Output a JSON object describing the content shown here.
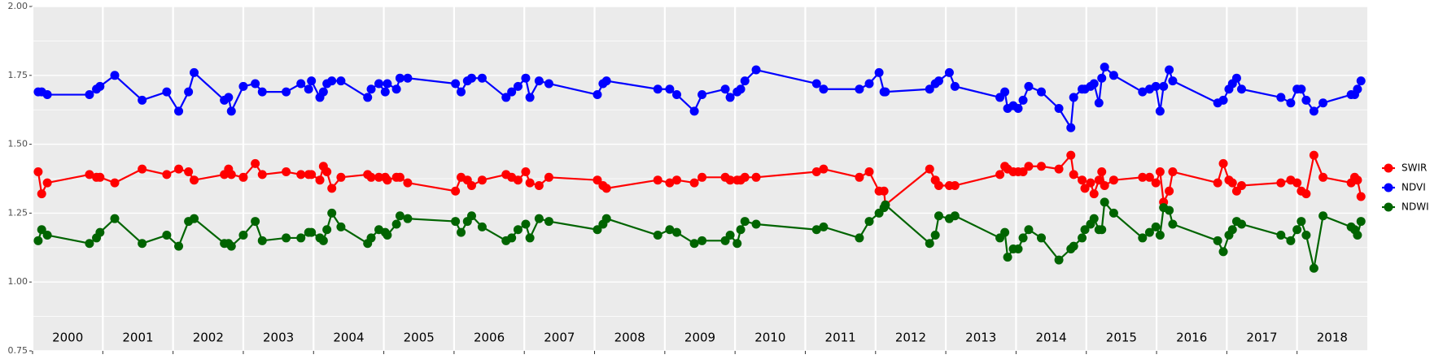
{
  "chart_data": {
    "type": "line",
    "x": [
      2000.08,
      2000.13,
      2000.21,
      2000.81,
      2000.91,
      2000.96,
      2001.17,
      2001.56,
      2001.91,
      2002.08,
      2002.22,
      2002.3,
      2002.73,
      2002.79,
      2002.83,
      2003.0,
      2003.17,
      2003.27,
      2003.61,
      2003.82,
      2003.93,
      2003.97,
      2004.09,
      2004.14,
      2004.19,
      2004.26,
      2004.39,
      2004.77,
      2004.82,
      2004.93,
      2005.02,
      2005.05,
      2005.18,
      2005.23,
      2005.34,
      2006.02,
      2006.1,
      2006.19,
      2006.25,
      2006.4,
      2006.74,
      2006.82,
      2006.91,
      2007.02,
      2007.08,
      2007.21,
      2007.35,
      2008.04,
      2008.12,
      2008.17,
      2008.9,
      2009.07,
      2009.17,
      2009.42,
      2009.53,
      2009.86,
      2009.93,
      2010.03,
      2010.08,
      2010.14,
      2010.3,
      2011.16,
      2011.26,
      2011.77,
      2011.91,
      2012.05,
      2012.12,
      2012.14,
      2012.77,
      2012.85,
      2012.9,
      2013.05,
      2013.13,
      2013.77,
      2013.84,
      2013.88,
      2013.96,
      2014.03,
      2014.1,
      2014.18,
      2014.36,
      2014.61,
      2014.78,
      2014.82,
      2014.94,
      2014.98,
      2015.06,
      2015.11,
      2015.18,
      2015.22,
      2015.26,
      2015.39,
      2015.8,
      2015.9,
      2015.99,
      2016.05,
      2016.1,
      2016.18,
      2016.23,
      2016.87,
      2016.95,
      2017.03,
      2017.08,
      2017.14,
      2017.21,
      2017.77,
      2017.91,
      2018.0,
      2018.06,
      2018.13,
      2018.24,
      2018.37,
      2018.77,
      2018.82,
      2018.86,
      2018.91
    ],
    "series": [
      {
        "name": "SWIR",
        "color": "#ff0000",
        "values": [
          1.4,
          1.32,
          1.36,
          1.39,
          1.38,
          1.38,
          1.36,
          1.41,
          1.39,
          1.41,
          1.4,
          1.37,
          1.39,
          1.41,
          1.39,
          1.38,
          1.43,
          1.39,
          1.4,
          1.39,
          1.39,
          1.39,
          1.37,
          1.42,
          1.4,
          1.34,
          1.38,
          1.39,
          1.38,
          1.38,
          1.38,
          1.37,
          1.38,
          1.38,
          1.36,
          1.33,
          1.38,
          1.37,
          1.35,
          1.37,
          1.39,
          1.38,
          1.37,
          1.4,
          1.36,
          1.35,
          1.38,
          1.37,
          1.35,
          1.34,
          1.37,
          1.36,
          1.37,
          1.36,
          1.38,
          1.38,
          1.37,
          1.37,
          1.37,
          1.38,
          1.38,
          1.4,
          1.41,
          1.38,
          1.4,
          1.33,
          1.33,
          1.28,
          1.41,
          1.37,
          1.35,
          1.35,
          1.35,
          1.39,
          1.42,
          1.41,
          1.4,
          1.4,
          1.4,
          1.42,
          1.42,
          1.41,
          1.46,
          1.39,
          1.37,
          1.34,
          1.36,
          1.32,
          1.37,
          1.4,
          1.35,
          1.37,
          1.38,
          1.38,
          1.36,
          1.4,
          1.29,
          1.33,
          1.4,
          1.36,
          1.43,
          1.37,
          1.36,
          1.33,
          1.35,
          1.36,
          1.37,
          1.36,
          1.33,
          1.32,
          1.46,
          1.38,
          1.36,
          1.38,
          1.37,
          1.31
        ]
      },
      {
        "name": "NDVI",
        "color": "#0000ff",
        "values": [
          1.69,
          1.69,
          1.68,
          1.68,
          1.7,
          1.71,
          1.75,
          1.66,
          1.69,
          1.62,
          1.69,
          1.76,
          1.66,
          1.67,
          1.62,
          1.71,
          1.72,
          1.69,
          1.69,
          1.72,
          1.7,
          1.73,
          1.67,
          1.69,
          1.72,
          1.73,
          1.73,
          1.67,
          1.7,
          1.72,
          1.69,
          1.72,
          1.7,
          1.74,
          1.74,
          1.72,
          1.69,
          1.73,
          1.74,
          1.74,
          1.67,
          1.69,
          1.71,
          1.74,
          1.67,
          1.73,
          1.72,
          1.68,
          1.72,
          1.73,
          1.7,
          1.7,
          1.68,
          1.62,
          1.68,
          1.7,
          1.67,
          1.69,
          1.7,
          1.73,
          1.77,
          1.72,
          1.7,
          1.7,
          1.72,
          1.76,
          1.69,
          1.69,
          1.7,
          1.72,
          1.73,
          1.76,
          1.71,
          1.67,
          1.69,
          1.63,
          1.64,
          1.63,
          1.66,
          1.71,
          1.69,
          1.63,
          1.56,
          1.67,
          1.7,
          1.7,
          1.71,
          1.72,
          1.65,
          1.74,
          1.78,
          1.75,
          1.69,
          1.7,
          1.71,
          1.62,
          1.71,
          1.77,
          1.73,
          1.65,
          1.66,
          1.7,
          1.72,
          1.74,
          1.7,
          1.67,
          1.65,
          1.7,
          1.7,
          1.66,
          1.62,
          1.65,
          1.68,
          1.68,
          1.7,
          1.73
        ]
      },
      {
        "name": "NDWI",
        "color": "#006400",
        "values": [
          1.15,
          1.19,
          1.17,
          1.14,
          1.16,
          1.18,
          1.23,
          1.14,
          1.17,
          1.13,
          1.22,
          1.23,
          1.14,
          1.14,
          1.13,
          1.17,
          1.22,
          1.15,
          1.16,
          1.16,
          1.18,
          1.18,
          1.16,
          1.15,
          1.19,
          1.25,
          1.2,
          1.14,
          1.16,
          1.19,
          1.18,
          1.17,
          1.21,
          1.24,
          1.23,
          1.22,
          1.18,
          1.22,
          1.24,
          1.2,
          1.15,
          1.16,
          1.19,
          1.21,
          1.16,
          1.23,
          1.22,
          1.19,
          1.21,
          1.23,
          1.17,
          1.19,
          1.18,
          1.14,
          1.15,
          1.15,
          1.17,
          1.14,
          1.19,
          1.22,
          1.21,
          1.19,
          1.2,
          1.16,
          1.22,
          1.25,
          1.27,
          1.28,
          1.14,
          1.17,
          1.24,
          1.23,
          1.24,
          1.16,
          1.18,
          1.09,
          1.12,
          1.12,
          1.16,
          1.19,
          1.16,
          1.08,
          1.12,
          1.13,
          1.16,
          1.19,
          1.21,
          1.23,
          1.19,
          1.19,
          1.29,
          1.25,
          1.16,
          1.18,
          1.2,
          1.17,
          1.27,
          1.26,
          1.21,
          1.15,
          1.11,
          1.17,
          1.19,
          1.22,
          1.21,
          1.17,
          1.15,
          1.19,
          1.22,
          1.17,
          1.05,
          1.24,
          1.2,
          1.19,
          1.17,
          1.22
        ]
      }
    ],
    "xlim": [
      2000,
      2019
    ],
    "xticks": [
      2000,
      2001,
      2002,
      2003,
      2004,
      2005,
      2006,
      2007,
      2008,
      2009,
      2010,
      2011,
      2012,
      2013,
      2014,
      2015,
      2016,
      2017,
      2018
    ],
    "ylim": [
      0.75,
      2.0
    ],
    "yticks": [
      {
        "value": 0.75,
        "label": "0.75"
      },
      {
        "value": 1,
        "label": "1.00"
      },
      {
        "value": 1.25,
        "label": "1.25"
      },
      {
        "value": 1.5,
        "label": "1.50"
      },
      {
        "value": 1.75,
        "label": "1.75"
      },
      {
        "value": 2,
        "label": "2.00"
      }
    ],
    "grid": true,
    "legend": "right"
  }
}
